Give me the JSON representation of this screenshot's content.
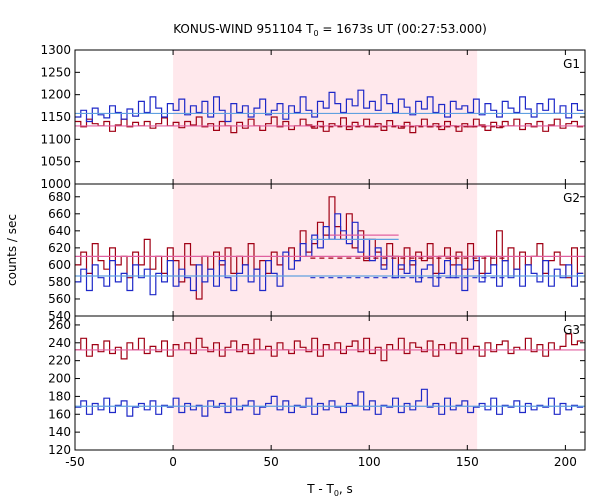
{
  "title": {
    "main": "KONUS-WIND 951104 T",
    "sub": "0",
    "rest": " = 1673s UT (00:27:53.000)"
  },
  "xlabel": {
    "main": "T - T",
    "sub": "0",
    "rest": ", s"
  },
  "ylabel": "counts / sec",
  "colors": {
    "red": "#a00014",
    "blue": "#1e28c8",
    "fit_red": "#e060a0",
    "fit_blue": "#60a0e0",
    "interval_fill": "#ffe8ec"
  },
  "chart_data": {
    "type": "line",
    "x_range": [
      -50,
      210
    ],
    "x_ticks": [
      -50,
      0,
      50,
      100,
      150,
      200
    ],
    "highlight_interval": [
      0,
      155
    ],
    "bin_width": 2.944,
    "panels": [
      {
        "name": "G1",
        "ylim": [
          1000,
          1300
        ],
        "yticks": [
          1000,
          1050,
          1100,
          1150,
          1200,
          1250,
          1300
        ],
        "series": [
          {
            "name": "red",
            "start": -50,
            "values": [
              1140,
              1128,
              1145,
              1135,
              1130,
              1140,
              1118,
              1132,
              1145,
              1128,
              1138,
              1130,
              1140,
              1125,
              1135,
              1148,
              1130,
              1138,
              1126,
              1140,
              1132,
              1150,
              1128,
              1135,
              1120,
              1140,
              1130,
              1115,
              1138,
              1125,
              1145,
              1130,
              1120,
              1135,
              1150,
              1128,
              1140,
              1122,
              1130,
              1145,
              1132,
              1125,
              1140,
              1118,
              1135,
              1130,
              1148,
              1122,
              1138,
              1130,
              1145,
              1128,
              1135,
              1120,
              1142,
              1130,
              1125,
              1138,
              1115,
              1130,
              1145,
              1128,
              1135,
              1122,
              1140,
              1130,
              1118,
              1135,
              1128,
              1145,
              1132,
              1120,
              1138,
              1126,
              1140,
              1130,
              1145,
              1122,
              1135,
              1128,
              1140,
              1118,
              1132,
              1145,
              1125,
              1135,
              1140,
              1128
            ]
          },
          {
            "name": "blue",
            "start": -50,
            "values": [
              1150,
              1165,
              1140,
              1170,
              1155,
              1148,
              1175,
              1160,
              1145,
              1168,
              1152,
              1185,
              1160,
              1195,
              1170,
              1150,
              1180,
              1165,
              1190,
              1155,
              1175,
              1160,
              1185,
              1150,
              1195,
              1165,
              1140,
              1180,
              1160,
              1175,
              1150,
              1170,
              1190,
              1155,
              1165,
              1180,
              1145,
              1175,
              1160,
              1195,
              1165,
              1150,
              1185,
              1170,
              1205,
              1180,
              1160,
              1190,
              1175,
              1210,
              1170,
              1185,
              1165,
              1200,
              1180,
              1160,
              1190,
              1172,
              1155,
              1185,
              1168,
              1195,
              1160,
              1178,
              1150,
              1185,
              1168,
              1175,
              1160,
              1190,
              1155,
              1180,
              1165,
              1150,
              1185,
              1170,
              1160,
              1195,
              1168,
              1150,
              1180,
              1165,
              1190,
              1158,
              1175,
              1148,
              1180,
              1165
            ]
          }
        ],
        "fit_lines": [
          {
            "name": "red-fit",
            "color": "fit_red",
            "y": 1130,
            "from": -50,
            "to": 210,
            "dashed": false
          },
          {
            "name": "blue-fit",
            "color": "fit_blue",
            "y": 1158,
            "from": -50,
            "to": 210,
            "dashed": false
          },
          {
            "name": "red-bg-dashed",
            "color": "red",
            "y": 1128,
            "from": 70,
            "to": 170,
            "dashed": true
          }
        ]
      },
      {
        "name": "G2",
        "ylim": [
          540,
          695
        ],
        "yticks": [
          540,
          560,
          580,
          600,
          620,
          640,
          660,
          680
        ],
        "series": [
          {
            "name": "red",
            "start": -50,
            "values": [
              600,
              615,
              590,
              625,
              605,
              595,
              620,
              600,
              610,
              585,
              615,
              600,
              630,
              595,
              610,
              590,
              620,
              605,
              580,
              625,
              600,
              560,
              610,
              595,
              615,
              600,
              620,
              590,
              610,
              600,
              625,
              595,
              605,
              590,
              615,
              600,
              610,
              620,
              605,
              640,
              615,
              625,
              650,
              635,
              680,
              645,
              630,
              660,
              620,
              640,
              605,
              630,
              615,
              600,
              625,
              610,
              595,
              620,
              600,
              615,
              605,
              625,
              590,
              610,
              620,
              600,
              615,
              595,
              625,
              605,
              590,
              610,
              600,
              640,
              605,
              620,
              595,
              615,
              600,
              610,
              625,
              590,
              605,
              615,
              600,
              585,
              620,
              590
            ]
          },
          {
            "name": "blue",
            "start": -50,
            "values": [
              580,
              595,
              570,
              600,
              585,
              575,
              605,
              580,
              590,
              570,
              600,
              585,
              595,
              565,
              590,
              580,
              605,
              575,
              595,
              585,
              570,
              600,
              580,
              595,
              575,
              605,
              585,
              570,
              590,
              600,
              580,
              595,
              570,
              605,
              590,
              575,
              615,
              595,
              605,
              625,
              610,
              635,
              620,
              645,
              630,
              660,
              640,
              625,
              650,
              615,
              630,
              605,
              620,
              595,
              610,
              585,
              600,
              590,
              605,
              580,
              595,
              600,
              575,
              590,
              605,
              585,
              600,
              570,
              595,
              610,
              580,
              590,
              600,
              575,
              605,
              585,
              595,
              575,
              600,
              590,
              580,
              605,
              575,
              595,
              585,
              600,
              575,
              590
            ]
          }
        ],
        "fit_lines": [
          {
            "name": "red-fit",
            "color": "fit_red",
            "y": 610,
            "from": -50,
            "to": 210,
            "dashed": false
          },
          {
            "name": "blue-fit",
            "color": "fit_blue",
            "y": 587,
            "from": -50,
            "to": 210,
            "dashed": false
          },
          {
            "name": "red-bg-dashed",
            "color": "red",
            "y": 608,
            "from": 70,
            "to": 170,
            "dashed": true
          },
          {
            "name": "blue-bg-dashed",
            "color": "blue",
            "y": 585,
            "from": 70,
            "to": 170,
            "dashed": true
          },
          {
            "name": "red-peak",
            "color": "fit_red",
            "y": 635,
            "from": 80,
            "to": 115,
            "dashed": false
          },
          {
            "name": "blue-peak",
            "color": "fit_blue",
            "y": 630,
            "from": 70,
            "to": 115,
            "dashed": false
          }
        ]
      },
      {
        "name": "G3",
        "ylim": [
          120,
          270
        ],
        "yticks": [
          120,
          140,
          160,
          180,
          200,
          220,
          240,
          260
        ],
        "series": [
          {
            "name": "red",
            "start": -50,
            "values": [
              232,
              245,
              225,
              238,
              230,
              242,
              228,
              235,
              222,
              240,
              232,
              245,
              228,
              236,
              230,
              242,
              225,
              238,
              232,
              240,
              228,
              245,
              235,
              230,
              240,
              225,
              235,
              242,
              230,
              238,
              228,
              244,
              232,
              236,
              225,
              240,
              232,
              228,
              242,
              235,
              230,
              245,
              225,
              238,
              232,
              240,
              228,
              236,
              242,
              230,
              245,
              228,
              235,
              220,
              238,
              232,
              245,
              228,
              240,
              235,
              230,
              242,
              225,
              238,
              232,
              240,
              228,
              245,
              232,
              236,
              225,
              240,
              230,
              238,
              242,
              228,
              235,
              232,
              245,
              230,
              238,
              225,
              240,
              232,
              236,
              250,
              238,
              242
            ]
          },
          {
            "name": "blue",
            "start": -50,
            "values": [
              168,
              175,
              160,
              172,
              165,
              178,
              162,
              170,
              175,
              158,
              168,
              172,
              165,
              175,
              160,
              170,
              168,
              178,
              162,
              172,
              165,
              170,
              158,
              175,
              168,
              172,
              162,
              178,
              165,
              170,
              175,
              160,
              168,
              172,
              180,
              165,
              175,
              162,
              170,
              168,
              178,
              160,
              172,
              165,
              175,
              168,
              162,
              172,
              170,
              185,
              165,
              175,
              160,
              170,
              168,
              178,
              162,
              172,
              165,
              175,
              188,
              168,
              172,
              160,
              178,
              165,
              170,
              175,
              162,
              168,
              172,
              165,
              178,
              160,
              170,
              168,
              175,
              162,
              172,
              165,
              170,
              168,
              178,
              160,
              172,
              165,
              170,
              168
            ]
          }
        ],
        "fit_lines": [
          {
            "name": "red-fit",
            "color": "fit_red",
            "y": 232,
            "from": -50,
            "to": 210,
            "dashed": false
          },
          {
            "name": "blue-fit",
            "color": "fit_blue",
            "y": 169,
            "from": -50,
            "to": 210,
            "dashed": false
          }
        ]
      }
    ]
  }
}
